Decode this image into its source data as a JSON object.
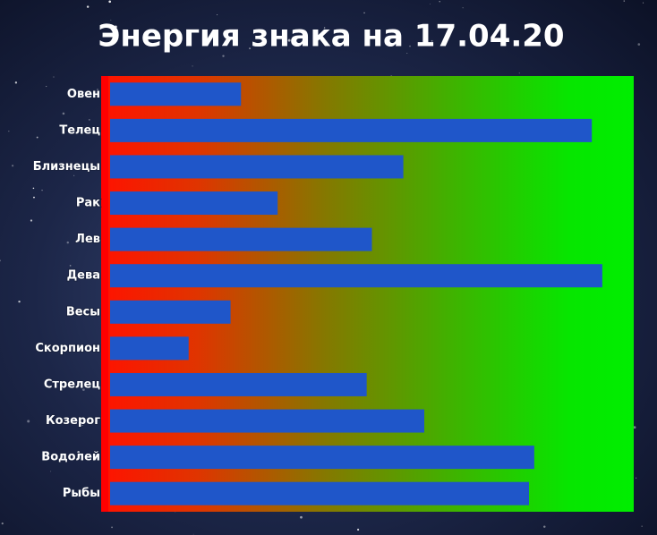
{
  "chart_data": {
    "type": "bar",
    "orientation": "horizontal",
    "title": "Энергия знака на 17.04.20",
    "categories": [
      "Овен",
      "Телец",
      "Близнецы",
      "Рак",
      "Лев",
      "Дева",
      "Весы",
      "Скорпион",
      "Стрелец",
      "Козерог",
      "Водолей",
      "Рыбы"
    ],
    "values": [
      25,
      92,
      56,
      32,
      50,
      94,
      23,
      15,
      49,
      60,
      81,
      80
    ],
    "color": "#1f56c9",
    "xlim": [
      0,
      100
    ]
  }
}
